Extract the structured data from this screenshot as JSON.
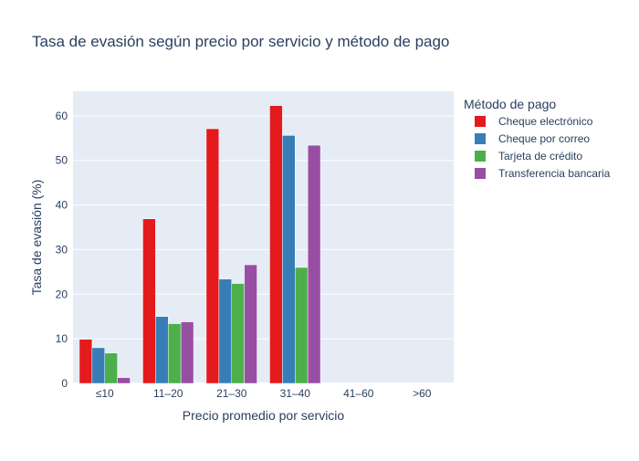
{
  "chart_data": {
    "type": "bar",
    "title": "Tasa de evasión según precio por servicio y método de pago",
    "xlabel": "Precio promedio por servicio",
    "ylabel": "Tasa de evasión (%)",
    "categories": [
      "≤10",
      "11–20",
      "21–30",
      "31–40",
      "41–60",
      ">60"
    ],
    "ylim": [
      0,
      65.5
    ],
    "yticks": [
      0,
      10,
      20,
      30,
      40,
      50,
      60
    ],
    "grid": true,
    "legend_title": "Método de pago",
    "legend_position": "right",
    "series": [
      {
        "name": "Cheque electrónico",
        "color": "#e41a1c",
        "values": [
          9.9,
          36.9,
          57.1,
          62.3,
          null,
          null
        ]
      },
      {
        "name": "Cheque por correo",
        "color": "#377eb8",
        "values": [
          8.0,
          15.0,
          23.4,
          55.6,
          null,
          null
        ]
      },
      {
        "name": "Tarjeta de crédito",
        "color": "#4daf4a",
        "values": [
          6.8,
          13.4,
          22.4,
          26.0,
          null,
          null
        ]
      },
      {
        "name": "Transferencia bancaria",
        "color": "#984ea3",
        "values": [
          1.3,
          13.8,
          26.6,
          53.4,
          null,
          null
        ]
      }
    ]
  }
}
